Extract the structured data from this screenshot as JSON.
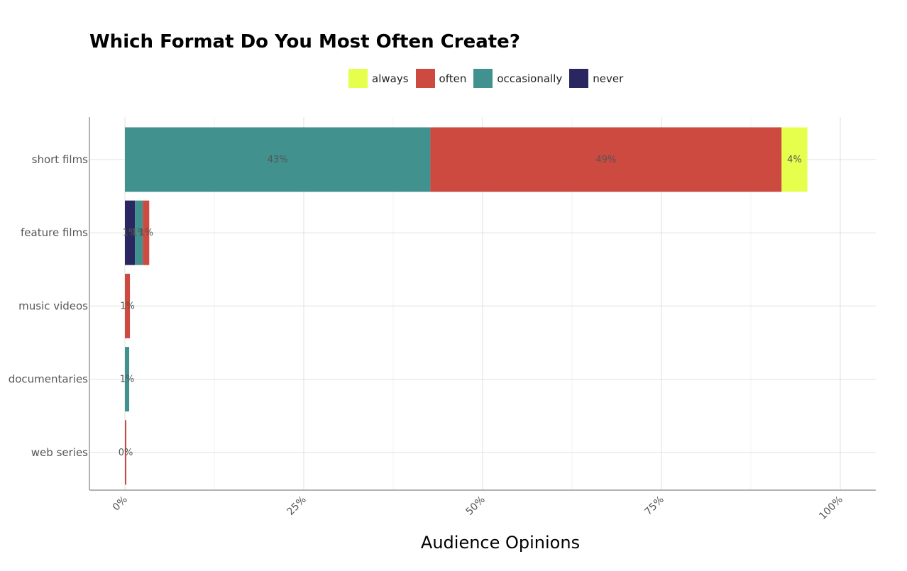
{
  "chart_data": {
    "type": "bar",
    "orientation": "horizontal",
    "stacked": true,
    "title": "Which Format Do You Most Often Create?",
    "xlabel": "Audience Opinions",
    "ylabel": "",
    "xlim": [
      0,
      105
    ],
    "xticks": [
      0,
      25,
      50,
      75,
      100
    ],
    "xtick_labels": [
      "0%",
      "25%",
      "50%",
      "75%",
      "100%"
    ],
    "grid": true,
    "legend_position": "top",
    "categories": [
      "short films",
      "feature films",
      "music videos",
      "documentaries",
      "web series"
    ],
    "series": [
      {
        "name": "never",
        "color": "#2a2760",
        "values": [
          0,
          1.4,
          0,
          0,
          0
        ],
        "labels": [
          "",
          "1%",
          "",
          "",
          ""
        ]
      },
      {
        "name": "occasionally",
        "color": "#41918f",
        "values": [
          42.7,
          1.1,
          0,
          0.6,
          0
        ],
        "labels": [
          "43%",
          "1%",
          "",
          "1%",
          ""
        ]
      },
      {
        "name": "often",
        "color": "#cc4a40",
        "values": [
          49.1,
          0.9,
          0.7,
          0,
          0.2
        ],
        "labels": [
          "49%",
          "1%",
          "1%",
          "",
          "0%"
        ]
      },
      {
        "name": "always",
        "color": "#e6ff4d",
        "values": [
          3.6,
          0,
          0,
          0,
          0
        ],
        "labels": [
          "4%",
          "",
          "",
          "",
          ""
        ]
      }
    ],
    "legend_order": [
      "always",
      "often",
      "occasionally",
      "never"
    ]
  }
}
